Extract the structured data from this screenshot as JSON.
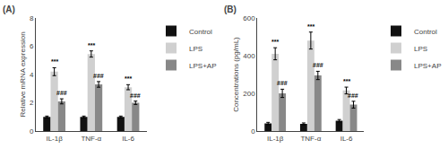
{
  "chart_data": [
    {
      "type": "bar",
      "title": "(A)",
      "ylabel": "Relative mRNA expression",
      "categories": [
        "IL-1β",
        "TNF-α",
        "IL-6"
      ],
      "series": [
        {
          "name": "Control",
          "color": "#111111",
          "values": [
            1.0,
            1.0,
            1.0
          ],
          "errors": [
            0.06,
            0.06,
            0.06
          ]
        },
        {
          "name": "LPS",
          "color": "#d0d0d0",
          "values": [
            4.2,
            5.45,
            3.1
          ],
          "errors": [
            0.28,
            0.22,
            0.18
          ]
        },
        {
          "name": "LPS+AP",
          "color": "#888888",
          "values": [
            2.1,
            3.3,
            2.0
          ],
          "errors": [
            0.18,
            0.2,
            0.12
          ]
        }
      ],
      "annotations": [
        {
          "category": "IL-1β",
          "series": "LPS",
          "text": "***"
        },
        {
          "category": "TNF-α",
          "series": "LPS",
          "text": "***"
        },
        {
          "category": "IL-6",
          "series": "LPS",
          "text": "***"
        },
        {
          "category": "IL-1β",
          "series": "LPS+AP",
          "text": "###"
        },
        {
          "category": "TNF-α",
          "series": "LPS+AP",
          "text": "###"
        },
        {
          "category": "IL-6",
          "series": "LPS+AP",
          "text": "###"
        }
      ],
      "ylim": [
        0,
        8
      ],
      "yticks": [
        0,
        2,
        4,
        6,
        8
      ],
      "grid": false,
      "legend": "upper right"
    },
    {
      "type": "bar",
      "title": "(B)",
      "ylabel": "Concentrations (pg/mL)",
      "categories": [
        "IL-1β",
        "TNF-α",
        "IL-6"
      ],
      "series": [
        {
          "name": "Control",
          "color": "#111111",
          "values": [
            40,
            38,
            55
          ],
          "errors": [
            6,
            5,
            6
          ]
        },
        {
          "name": "LPS",
          "color": "#d0d0d0",
          "values": [
            410,
            480,
            215
          ],
          "errors": [
            32,
            45,
            18
          ]
        },
        {
          "name": "LPS+AP",
          "color": "#888888",
          "values": [
            200,
            295,
            140
          ],
          "errors": [
            22,
            22,
            18
          ]
        }
      ],
      "annotations": [
        {
          "category": "IL-1β",
          "series": "LPS",
          "text": "***"
        },
        {
          "category": "TNF-α",
          "series": "LPS",
          "text": "***"
        },
        {
          "category": "IL-6",
          "series": "LPS",
          "text": "***"
        },
        {
          "category": "IL-1β",
          "series": "LPS+AP",
          "text": "###"
        },
        {
          "category": "TNF-α",
          "series": "LPS+AP",
          "text": "###"
        },
        {
          "category": "IL-6",
          "series": "LPS+AP",
          "text": "###"
        }
      ],
      "ylim": [
        0,
        600
      ],
      "yticks": [
        0,
        200,
        400,
        600
      ],
      "grid": false,
      "legend": "upper right"
    }
  ]
}
